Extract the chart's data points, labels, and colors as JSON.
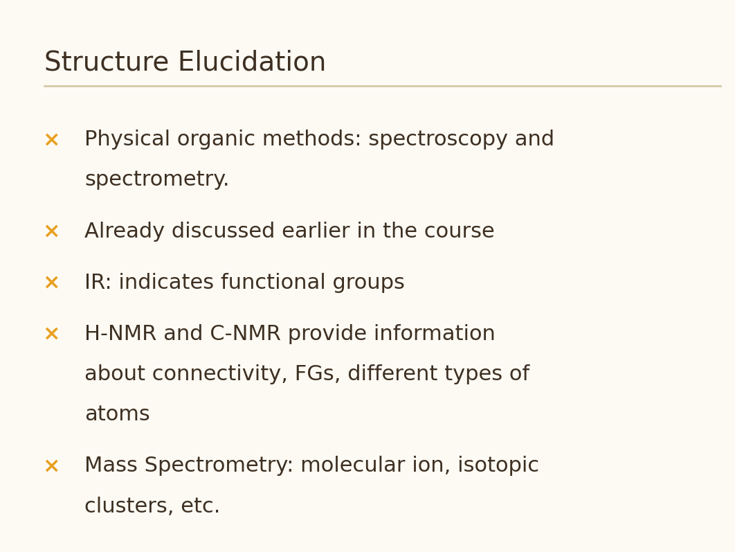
{
  "title": "Structure Elucidation",
  "title_color": "#3d3022",
  "title_fontsize": 28,
  "background_color": "#fdfaf4",
  "separator_color": "#d4c9a8",
  "bullet_color": "#e8a020",
  "text_color": "#3d3022",
  "text_fontsize": 22,
  "bullet_symbol": "×",
  "bullet_fontsize": 22,
  "bullets": [
    [
      "Physical organic methods: spectroscopy and",
      "spectrometry."
    ],
    [
      "Already discussed earlier in the course"
    ],
    [
      "IR: indicates functional groups"
    ],
    [
      "H-NMR and C-NMR provide information",
      "about connectivity, FGs, different types of",
      "atoms"
    ],
    [
      "Mass Spectrometry: molecular ion, isotopic",
      "clusters, etc."
    ]
  ]
}
